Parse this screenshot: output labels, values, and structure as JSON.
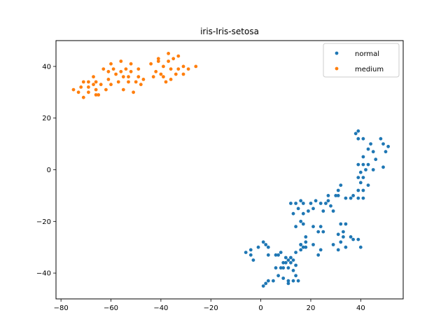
{
  "chart_data": {
    "type": "scatter",
    "title": "iris-Iris-setosa",
    "xlabel": "",
    "ylabel": "",
    "xlim": [
      -82,
      57
    ],
    "ylim": [
      -50,
      50
    ],
    "xticks": [
      -80,
      -60,
      -40,
      -20,
      0,
      20,
      40
    ],
    "yticks": [
      -40,
      -20,
      0,
      20,
      40
    ],
    "xtick_labels": [
      "−80",
      "−60",
      "−40",
      "−20",
      "0",
      "20",
      "40"
    ],
    "ytick_labels": [
      "−40",
      "−20",
      "0",
      "20",
      "40"
    ],
    "grid": false,
    "legend_position": "top-right",
    "series": [
      {
        "name": "normal",
        "color": "#1f77b4",
        "points": [
          [
            38,
            14
          ],
          [
            39,
            15
          ],
          [
            39,
            12
          ],
          [
            41,
            12
          ],
          [
            44,
            10
          ],
          [
            48,
            12
          ],
          [
            49,
            10
          ],
          [
            51,
            9
          ],
          [
            50,
            7
          ],
          [
            45,
            7
          ],
          [
            43,
            8
          ],
          [
            41,
            5
          ],
          [
            43,
            2
          ],
          [
            46,
            4
          ],
          [
            45,
            0
          ],
          [
            49,
            1
          ],
          [
            39,
            2
          ],
          [
            41,
            2
          ],
          [
            42,
            0
          ],
          [
            40,
            -1
          ],
          [
            39,
            -3
          ],
          [
            41,
            -3
          ],
          [
            40,
            -5
          ],
          [
            43,
            -6
          ],
          [
            39,
            -8
          ],
          [
            41,
            -8
          ],
          [
            39,
            -11
          ],
          [
            41,
            -11
          ],
          [
            37,
            -10
          ],
          [
            36,
            -11
          ],
          [
            34,
            -11
          ],
          [
            31,
            -10
          ],
          [
            32,
            -6
          ],
          [
            31,
            -8
          ],
          [
            30,
            -10
          ],
          [
            27,
            -10
          ],
          [
            27,
            -12
          ],
          [
            24,
            -13
          ],
          [
            22,
            -12
          ],
          [
            20,
            -13
          ],
          [
            12,
            -13
          ],
          [
            14,
            -13
          ],
          [
            16,
            -12
          ],
          [
            15,
            -15
          ],
          [
            17,
            -13
          ],
          [
            13,
            -17
          ],
          [
            17,
            -17
          ],
          [
            16,
            -20
          ],
          [
            17,
            -21
          ],
          [
            14,
            -22
          ],
          [
            21,
            -22
          ],
          [
            24,
            -22
          ],
          [
            23,
            -24
          ],
          [
            25,
            -24
          ],
          [
            18,
            -26
          ],
          [
            18,
            -28
          ],
          [
            16,
            -29
          ],
          [
            18,
            -30
          ],
          [
            21,
            -29
          ],
          [
            24,
            -31
          ],
          [
            23,
            -33
          ],
          [
            29,
            -29
          ],
          [
            31,
            -31
          ],
          [
            32,
            -28
          ],
          [
            33,
            -26
          ],
          [
            33,
            -24
          ],
          [
            32,
            -21
          ],
          [
            34,
            -21
          ],
          [
            36,
            -26
          ],
          [
            37,
            -27
          ],
          [
            39,
            -27
          ],
          [
            40,
            -30
          ],
          [
            34,
            -30
          ],
          [
            31,
            -25
          ],
          [
            26,
            -13
          ],
          [
            25,
            -16
          ],
          [
            21,
            -15
          ],
          [
            19,
            -16
          ],
          [
            29,
            -16
          ],
          [
            28,
            -14
          ],
          [
            -6,
            -32
          ],
          [
            -4,
            -31
          ],
          [
            -4,
            -33
          ],
          [
            -3,
            -35
          ],
          [
            -1,
            -30
          ],
          [
            1,
            -28
          ],
          [
            2,
            -29
          ],
          [
            3,
            -30
          ],
          [
            3,
            -33
          ],
          [
            6,
            -33
          ],
          [
            7,
            -33
          ],
          [
            8,
            -32
          ],
          [
            10,
            -34
          ],
          [
            9,
            -36
          ],
          [
            8,
            -38
          ],
          [
            6,
            -38
          ],
          [
            7,
            -41
          ],
          [
            5,
            -43
          ],
          [
            3,
            -43
          ],
          [
            2,
            -44
          ],
          [
            1,
            -45
          ],
          [
            9,
            -42
          ],
          [
            11,
            -43
          ],
          [
            11,
            -44
          ],
          [
            13,
            -43
          ],
          [
            15,
            -43
          ],
          [
            14,
            -41
          ],
          [
            13,
            -39
          ],
          [
            14,
            -37
          ],
          [
            11,
            -38
          ],
          [
            11,
            -35
          ],
          [
            13,
            -35
          ],
          [
            14,
            -32
          ],
          [
            16,
            -31
          ],
          [
            16,
            -29
          ],
          [
            17,
            -30
          ],
          [
            12,
            -34
          ],
          [
            12,
            -36
          ],
          [
            10,
            -36
          ],
          [
            9,
            -38
          ]
        ]
      },
      {
        "name": "medium",
        "color": "#ff7f0e",
        "points": [
          [
            -75,
            31
          ],
          [
            -73,
            30
          ],
          [
            -72,
            32
          ],
          [
            -71,
            28
          ],
          [
            -69,
            30
          ],
          [
            -69,
            32
          ],
          [
            -69,
            34
          ],
          [
            -67,
            33
          ],
          [
            -66,
            29
          ],
          [
            -66,
            31
          ],
          [
            -66,
            34
          ],
          [
            -65,
            29
          ],
          [
            -64,
            33
          ],
          [
            -62,
            31
          ],
          [
            -61,
            35
          ],
          [
            -61,
            38
          ],
          [
            -60,
            33
          ],
          [
            -59,
            39
          ],
          [
            -58,
            37
          ],
          [
            -57,
            34
          ],
          [
            -56,
            42
          ],
          [
            -56,
            38
          ],
          [
            -55,
            36
          ],
          [
            -55,
            31
          ],
          [
            -54,
            39
          ],
          [
            -53,
            36
          ],
          [
            -53,
            34
          ],
          [
            -52,
            41
          ],
          [
            -52,
            38
          ],
          [
            -51,
            30
          ],
          [
            -50,
            34
          ],
          [
            -49,
            36
          ],
          [
            -49,
            39
          ],
          [
            -48,
            33
          ],
          [
            -47,
            35
          ],
          [
            -44,
            41
          ],
          [
            -43,
            36
          ],
          [
            -42,
            38
          ],
          [
            -41,
            42
          ],
          [
            -40,
            37
          ],
          [
            -39,
            40
          ],
          [
            -39,
            36
          ],
          [
            -37,
            45
          ],
          [
            -37,
            42
          ],
          [
            -36,
            39
          ],
          [
            -36,
            35
          ],
          [
            -35,
            43
          ],
          [
            -34,
            37
          ],
          [
            -33,
            39
          ],
          [
            -33,
            44
          ],
          [
            -31,
            37
          ],
          [
            -31,
            40
          ],
          [
            -29,
            39
          ],
          [
            -26,
            40
          ],
          [
            -38,
            34
          ],
          [
            -41,
            43
          ],
          [
            -71,
            34
          ],
          [
            -63,
            39
          ],
          [
            -67,
            36
          ],
          [
            -60,
            41
          ]
        ]
      }
    ]
  }
}
